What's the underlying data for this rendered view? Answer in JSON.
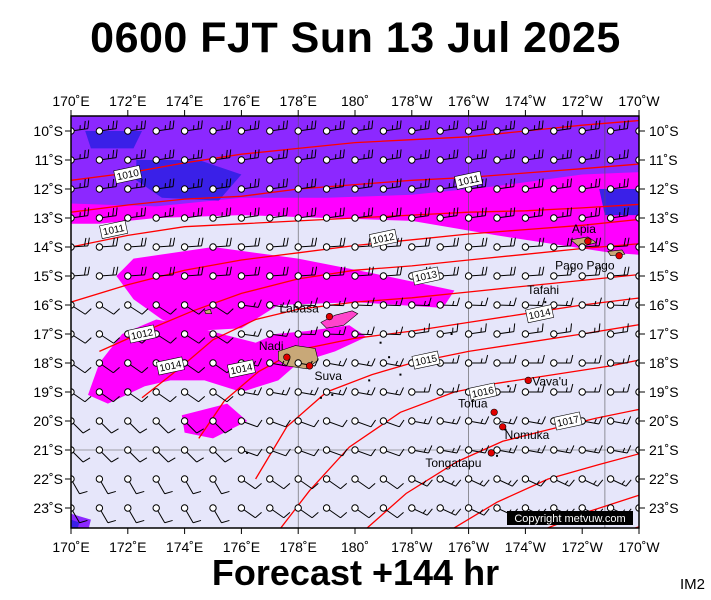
{
  "title": "0600 FJT Sun 13 Jul 2025",
  "forecast": "Forecast +144 hr",
  "corner_code": "IM2",
  "copyright": "Copyright metvuw.com",
  "longitudes": [
    "170˚E",
    "172˚E",
    "174˚E",
    "176˚E",
    "178˚E",
    "180˚",
    "178˚W",
    "176˚W",
    "174˚W",
    "172˚W",
    "170˚W"
  ],
  "latitudes": [
    "10˚S",
    "11˚S",
    "12˚S",
    "13˚S",
    "14˚S",
    "15˚S",
    "16˚S",
    "17˚S",
    "18˚S",
    "19˚S",
    "20˚S",
    "21˚S",
    "22˚S",
    "23˚S"
  ],
  "isobar_labels": [
    {
      "text": "1010",
      "lon": 172.0,
      "lat": -11.5
    },
    {
      "text": "1011",
      "lon": 184.0,
      "lat": -11.7
    },
    {
      "text": "1011",
      "lon": 171.5,
      "lat": -13.4
    },
    {
      "text": "1012",
      "lon": 181.0,
      "lat": -13.7
    },
    {
      "text": "1013",
      "lon": 182.5,
      "lat": -15.0
    },
    {
      "text": "1014",
      "lon": 186.5,
      "lat": -16.3
    },
    {
      "text": "1012",
      "lon": 172.5,
      "lat": -17.0
    },
    {
      "text": "1014",
      "lon": 173.5,
      "lat": -18.1
    },
    {
      "text": "1014",
      "lon": 176.0,
      "lat": -18.2
    },
    {
      "text": "1015",
      "lon": 182.5,
      "lat": -17.9
    },
    {
      "text": "1016",
      "lon": 184.5,
      "lat": -19.0
    },
    {
      "text": "1017",
      "lon": 187.5,
      "lat": -20.0
    }
  ],
  "places": [
    {
      "name": "Labasa",
      "lon": 179.1,
      "lat": -16.4,
      "dot": true
    },
    {
      "name": "Nadi",
      "lon": 177.6,
      "lat": -17.8,
      "dot": true
    },
    {
      "name": "Suva",
      "lon": 178.4,
      "lat": -18.1,
      "dot": true
    },
    {
      "name": "Apia",
      "lon": 188.2,
      "lat": -13.8,
      "dot": true
    },
    {
      "name": "Pago Pago",
      "lon": 189.3,
      "lat": -14.3,
      "dot": true
    },
    {
      "name": "Tafahi",
      "lon": 186.2,
      "lat": -15.8,
      "dot": false
    },
    {
      "name": "Vava'u",
      "lon": 186.1,
      "lat": -18.6,
      "dot": true
    },
    {
      "name": "Tofua",
      "lon": 184.9,
      "lat": -19.7,
      "dot": true
    },
    {
      "name": "Nomuka",
      "lon": 185.2,
      "lat": -20.2,
      "dot": true
    },
    {
      "name": "Tongatapu",
      "lon": 184.8,
      "lat": -21.1,
      "dot": true
    }
  ],
  "colors": {
    "background": "#e6e6fa",
    "precip_light": "#ff00ff",
    "precip_heavy": "#8c28ff",
    "precip_core": "#3a20e8",
    "isobar": "#ff0000",
    "land": "#c8a878"
  }
}
